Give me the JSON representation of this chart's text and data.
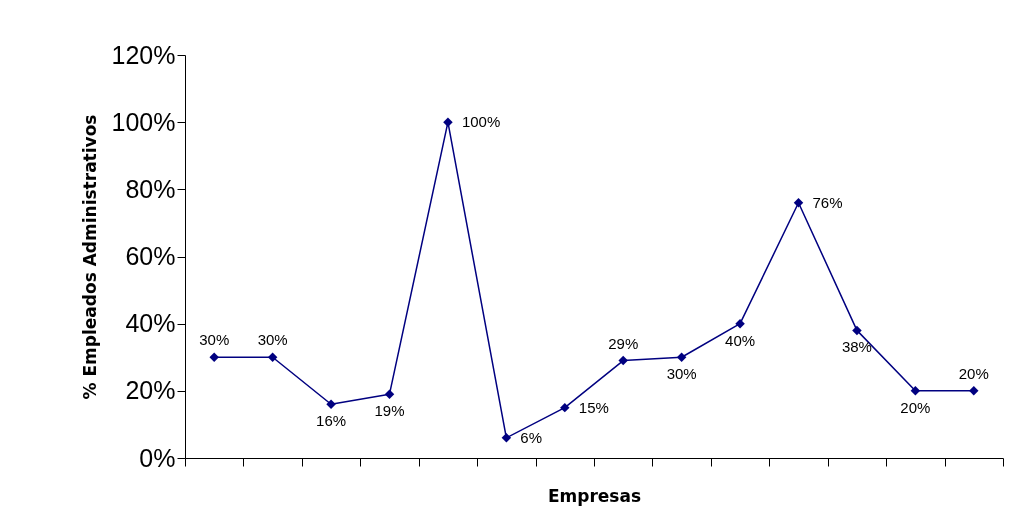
{
  "chart_data": {
    "type": "line",
    "xlabel": "Empresas",
    "ylabel": "% Empleados Administrativos",
    "categories": [
      null,
      null,
      null,
      null,
      null,
      null,
      null,
      null,
      null,
      null,
      null,
      null,
      null,
      null
    ],
    "series": [
      {
        "color": "#000080",
        "values": [
          30,
          30,
          16,
          19,
          100,
          6,
          15,
          29,
          30,
          40,
          76,
          38,
          20,
          20
        ],
        "value_labels": [
          "30%",
          "30%",
          "16%",
          "19%",
          "100%",
          "6%",
          "15%",
          "29%",
          "30%",
          "40%",
          "76%",
          "38%",
          "20%",
          "20%"
        ]
      }
    ],
    "ylim": [
      0,
      120
    ],
    "yticks": [
      {
        "value": 0,
        "label": "0%"
      },
      {
        "value": 20,
        "label": "20%"
      },
      {
        "value": 40,
        "label": "40%"
      },
      {
        "value": 60,
        "label": "60%"
      },
      {
        "value": 80,
        "label": "80%"
      },
      {
        "value": 100,
        "label": "100%"
      },
      {
        "value": 120,
        "label": "120%"
      }
    ],
    "marker": "diamond",
    "line_style": "solid",
    "grid": false
  }
}
